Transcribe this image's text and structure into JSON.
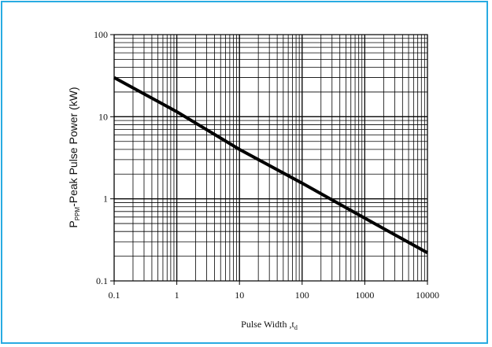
{
  "colors": {
    "frame_border": "#29abe2",
    "grid": "#000000",
    "curve": "#000000"
  },
  "chart_data": {
    "type": "line",
    "title": "",
    "xlabel": {
      "main": "Pulse Width ,t",
      "sub": "d"
    },
    "ylabel": {
      "main": "P",
      "sub": "PPM",
      "rest": "-Peak Pulse Power (kW)"
    },
    "xscale": "log",
    "yscale": "log",
    "xlim": [
      0.1,
      10000
    ],
    "ylim": [
      0.1,
      100
    ],
    "x_ticks": [
      "0.1",
      "1",
      "10",
      "100",
      "1000",
      "10000"
    ],
    "y_ticks": [
      "0.1",
      "1",
      "10",
      "100"
    ],
    "grid": true,
    "series": [
      {
        "x": [
          0.1,
          1,
          10,
          100,
          1000,
          10000
        ],
        "y": [
          30,
          11.5,
          4.0,
          1.55,
          0.58,
          0.22
        ]
      }
    ]
  }
}
